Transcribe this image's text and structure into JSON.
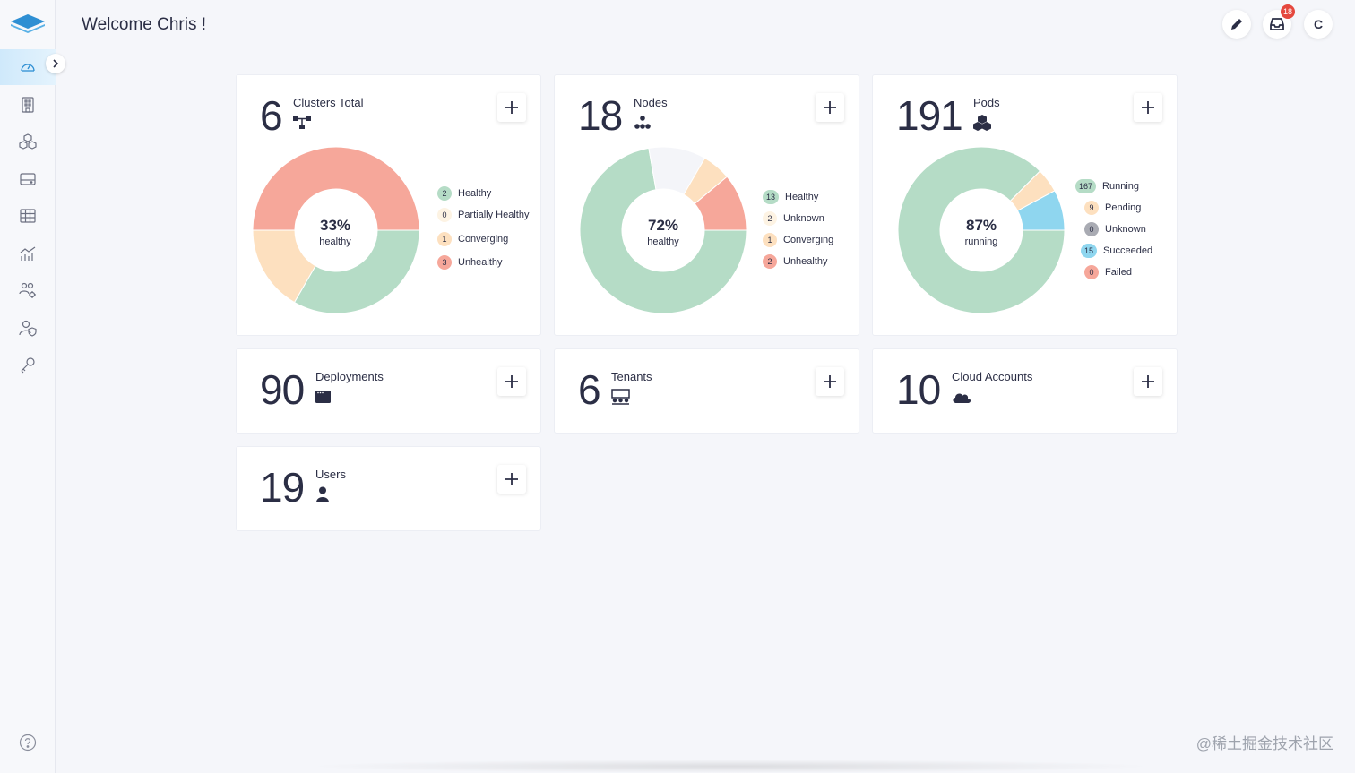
{
  "header": {
    "welcome": "Welcome Chris !",
    "notification_count": "18",
    "avatar_initial": "C"
  },
  "sidebar": {
    "items": [
      {
        "name": "dashboard",
        "icon": "gauge-icon",
        "active": true
      },
      {
        "name": "clusters",
        "icon": "building-icon"
      },
      {
        "name": "applications",
        "icon": "cubes-icon"
      },
      {
        "name": "storage",
        "icon": "drive-icon"
      },
      {
        "name": "tables",
        "icon": "grid-icon"
      },
      {
        "name": "monitoring",
        "icon": "chart-icon"
      },
      {
        "name": "teams",
        "icon": "users-gear-icon"
      },
      {
        "name": "access",
        "icon": "user-shield-icon"
      },
      {
        "name": "keys",
        "icon": "key-icon"
      }
    ],
    "help_icon": "help-icon"
  },
  "cards": {
    "clusters": {
      "count": "6",
      "title": "Clusters Total",
      "icon": "cluster-icon",
      "center_pct": "33%",
      "center_label": "healthy",
      "legend": [
        {
          "count": "2",
          "label": "Healthy",
          "color": "#b5dcc6"
        },
        {
          "count": "0",
          "label": "Partially Healthy",
          "color": "#fdf3e3"
        },
        {
          "count": "1",
          "label": "Converging",
          "color": "#fde0bf"
        },
        {
          "count": "3",
          "label": "Unhealthy",
          "color": "#f6a79a"
        }
      ]
    },
    "nodes": {
      "count": "18",
      "title": "Nodes",
      "icon": "nodes-icon",
      "center_pct": "72%",
      "center_label": "healthy",
      "legend": [
        {
          "count": "13",
          "label": "Healthy",
          "color": "#b5dcc6"
        },
        {
          "count": "2",
          "label": "Unknown",
          "color": "#fdf3e3"
        },
        {
          "count": "1",
          "label": "Converging",
          "color": "#fde0bf"
        },
        {
          "count": "2",
          "label": "Unhealthy",
          "color": "#f6a79a"
        }
      ]
    },
    "pods": {
      "count": "191",
      "title": "Pods",
      "icon": "pods-icon",
      "center_pct": "87%",
      "center_label": "running",
      "legend": [
        {
          "count": "167",
          "label": "Running",
          "color": "#b5dcc6"
        },
        {
          "count": "9",
          "label": "Pending",
          "color": "#fde0bf"
        },
        {
          "count": "0",
          "label": "Unknown",
          "color": "#a9abb3"
        },
        {
          "count": "15",
          "label": "Succeeded",
          "color": "#8fd6ef"
        },
        {
          "count": "0",
          "label": "Failed",
          "color": "#f6a79a"
        }
      ]
    },
    "deployments": {
      "count": "90",
      "title": "Deployments",
      "icon": "window-icon"
    },
    "tenants": {
      "count": "6",
      "title": "Tenants",
      "icon": "tenants-icon"
    },
    "cloud_accounts": {
      "count": "10",
      "title": "Cloud Accounts",
      "icon": "cloud-icon"
    },
    "users": {
      "count": "19",
      "title": "Users",
      "icon": "user-icon"
    }
  },
  "chart_data": [
    {
      "type": "pie",
      "categories": [
        "Healthy",
        "Partially Healthy",
        "Converging",
        "Unhealthy"
      ],
      "values": [
        2,
        0,
        1,
        3
      ],
      "colors": [
        "#b5dcc6",
        "#fdf3e3",
        "#fde0bf",
        "#f6a79a"
      ]
    },
    {
      "type": "pie",
      "categories": [
        "Healthy",
        "Unknown",
        "Converging",
        "Unhealthy"
      ],
      "values": [
        13,
        2,
        1,
        2
      ],
      "colors": [
        "#b5dcc6",
        "#f4f5f9",
        "#fde0bf",
        "#f6a79a"
      ]
    },
    {
      "type": "pie",
      "categories": [
        "Running",
        "Pending",
        "Unknown",
        "Succeeded",
        "Failed"
      ],
      "values": [
        167,
        9,
        0,
        15,
        0
      ],
      "colors": [
        "#b5dcc6",
        "#fde0bf",
        "#a9abb3",
        "#8fd6ef",
        "#f6a79a"
      ]
    }
  ],
  "watermark": "@稀土掘金技术社区"
}
